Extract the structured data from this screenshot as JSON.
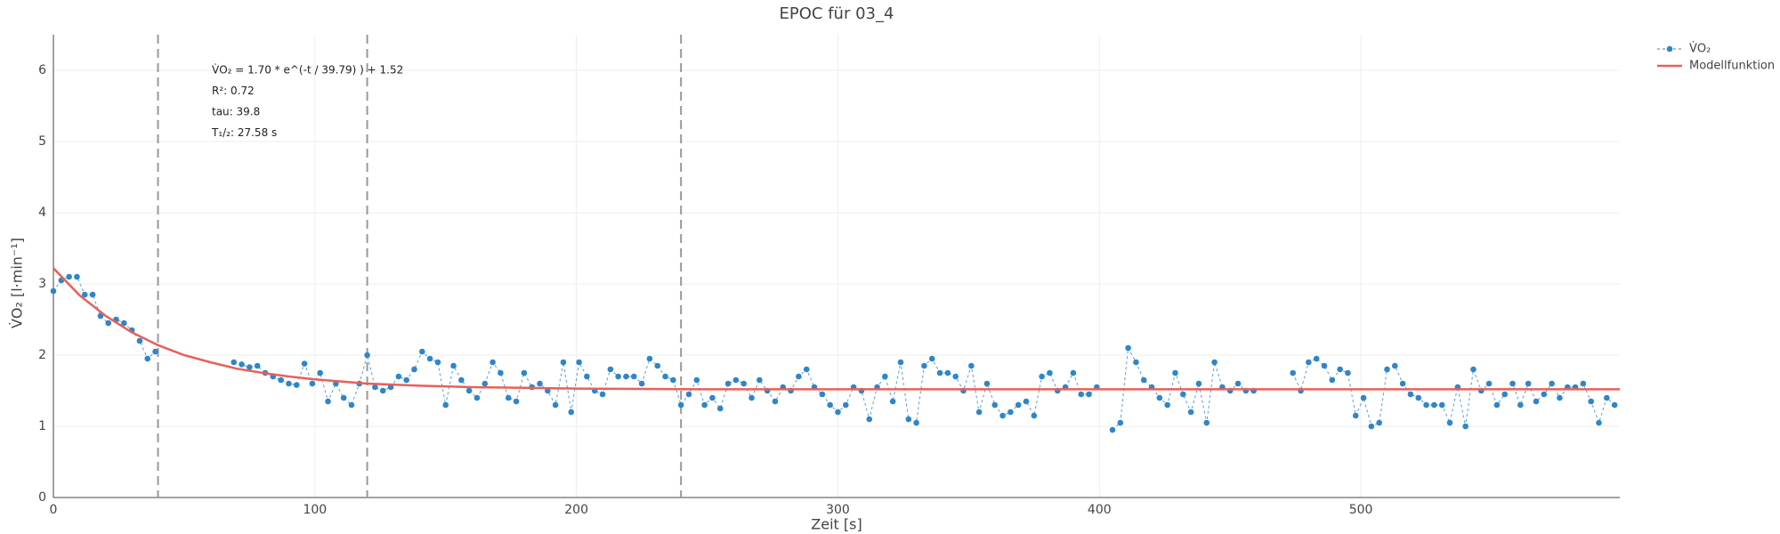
{
  "chart_data": {
    "type": "scatter",
    "title": "EPOC für 03_4",
    "x_label": "Zeit [s]",
    "y_label": "V̇O₂ [l·min⁻¹]",
    "annotations": [
      "V̇O₂ = 1.70 * e^(-t / 39.79) ) + 1.52",
      "R²: 0.72",
      "tau: 39.8",
      "T₁/₂: 27.58 s"
    ],
    "xlim": [
      0,
      599
    ],
    "ylim": [
      0,
      6.5
    ],
    "xticks": [
      0,
      100,
      200,
      300,
      400,
      500
    ],
    "yticks": [
      0,
      1,
      2,
      3,
      4,
      5,
      6
    ],
    "grid": true,
    "vlines": [
      40,
      120,
      240
    ],
    "legend": "top-right",
    "series": [
      {
        "name": "V̇O₂",
        "color": "#2e86c8",
        "mode": "markers+dashed-line",
        "x": [
          0,
          3,
          6,
          9,
          12,
          15,
          18,
          21,
          24,
          27,
          30,
          33,
          36,
          39,
          42,
          45,
          48,
          51,
          54,
          57,
          60,
          63,
          66,
          69,
          72,
          75,
          78,
          81,
          84,
          87,
          90,
          93,
          96,
          99,
          102,
          105,
          108,
          111,
          114,
          117,
          120,
          123,
          126,
          129,
          132,
          135,
          138,
          141,
          144,
          147,
          150,
          153,
          156,
          159,
          162,
          165,
          168,
          171,
          174,
          177,
          180,
          183,
          186,
          189,
          192,
          195,
          198,
          201,
          204,
          207,
          210,
          213,
          216,
          219,
          222,
          225,
          228,
          231,
          234,
          237,
          240,
          243,
          246,
          249,
          252,
          255,
          258,
          261,
          264,
          267,
          270,
          273,
          276,
          279,
          282,
          285,
          288,
          291,
          294,
          297,
          300,
          303,
          306,
          309,
          312,
          315,
          318,
          321,
          324,
          327,
          330,
          333,
          336,
          339,
          342,
          345,
          348,
          351,
          354,
          357,
          360,
          363,
          366,
          369,
          372,
          375,
          378,
          381,
          384,
          387,
          390,
          393,
          396,
          399,
          402,
          405,
          408,
          411,
          414,
          417,
          420,
          423,
          426,
          429,
          432,
          435,
          438,
          441,
          444,
          447,
          450,
          453,
          456,
          459,
          462,
          465,
          468,
          471,
          474,
          477,
          480,
          483,
          486,
          489,
          492,
          495,
          498,
          501,
          504,
          507,
          510,
          513,
          516,
          519,
          522,
          525,
          528,
          531,
          534,
          537,
          540,
          543,
          546,
          549,
          552,
          555,
          558,
          561,
          564,
          567,
          570,
          573,
          576,
          579,
          582,
          585,
          588,
          591,
          594,
          597
        ],
        "values": [
          2.9,
          3.05,
          3.1,
          3.1,
          2.85,
          2.85,
          2.55,
          2.45,
          2.5,
          2.45,
          2.35,
          2.2,
          1.95,
          2.05,
          null,
          null,
          null,
          null,
          null,
          null,
          null,
          null,
          null,
          1.9,
          1.87,
          1.83,
          1.85,
          1.75,
          1.7,
          1.65,
          1.6,
          1.58,
          1.88,
          1.6,
          1.75,
          1.35,
          1.6,
          1.4,
          1.3,
          1.6,
          2.0,
          1.55,
          1.5,
          1.55,
          1.7,
          1.65,
          1.8,
          2.05,
          1.95,
          1.9,
          1.3,
          1.85,
          1.65,
          1.5,
          1.4,
          1.6,
          1.9,
          1.75,
          1.4,
          1.35,
          1.75,
          1.55,
          1.6,
          1.5,
          1.3,
          1.9,
          1.2,
          1.9,
          1.7,
          1.5,
          1.45,
          1.8,
          1.7,
          1.7,
          1.7,
          1.6,
          1.95,
          1.85,
          1.7,
          1.65,
          1.3,
          1.45,
          1.65,
          1.3,
          1.4,
          1.25,
          1.6,
          1.65,
          1.6,
          1.4,
          1.65,
          1.5,
          1.35,
          1.55,
          1.5,
          1.7,
          1.8,
          1.55,
          1.45,
          1.3,
          1.2,
          1.3,
          1.55,
          1.5,
          1.1,
          1.55,
          1.7,
          1.35,
          1.9,
          1.1,
          1.05,
          1.85,
          1.95,
          1.75,
          1.75,
          1.7,
          1.5,
          1.85,
          1.2,
          1.6,
          1.3,
          1.15,
          1.2,
          1.3,
          1.35,
          1.15,
          1.7,
          1.75,
          1.5,
          1.55,
          1.75,
          1.45,
          1.45,
          1.55,
          null,
          0.95,
          1.05,
          2.1,
          1.9,
          1.65,
          1.55,
          1.4,
          1.3,
          1.75,
          1.45,
          1.2,
          1.6,
          1.05,
          1.9,
          1.55,
          1.5,
          1.6,
          1.5,
          1.5,
          null,
          null,
          null,
          null,
          1.75,
          1.5,
          1.9,
          1.95,
          1.85,
          1.65,
          1.8,
          1.75,
          1.15,
          1.4,
          1.0,
          1.05,
          1.8,
          1.85,
          1.6,
          1.45,
          1.4,
          1.3,
          1.3,
          1.3,
          1.05,
          1.55,
          1.0,
          1.8,
          1.5,
          1.6,
          1.3,
          1.45,
          1.6,
          1.3,
          1.6,
          1.35,
          1.45,
          1.6,
          1.4,
          1.55,
          1.55,
          1.6,
          1.35,
          1.05,
          1.4,
          1.3
        ]
      },
      {
        "name": "Modellfunktion",
        "color": "#e8605a",
        "mode": "line",
        "x": [
          0,
          10,
          20,
          30,
          40,
          50,
          60,
          70,
          80,
          90,
          100,
          110,
          120,
          140,
          160,
          180,
          200,
          250,
          300,
          400,
          500,
          599
        ],
        "values": [
          3.22,
          2.84,
          2.55,
          2.32,
          2.14,
          2.0,
          1.9,
          1.81,
          1.75,
          1.7,
          1.66,
          1.63,
          1.6,
          1.57,
          1.55,
          1.54,
          1.53,
          1.52,
          1.52,
          1.52,
          1.52,
          1.52
        ]
      }
    ]
  }
}
